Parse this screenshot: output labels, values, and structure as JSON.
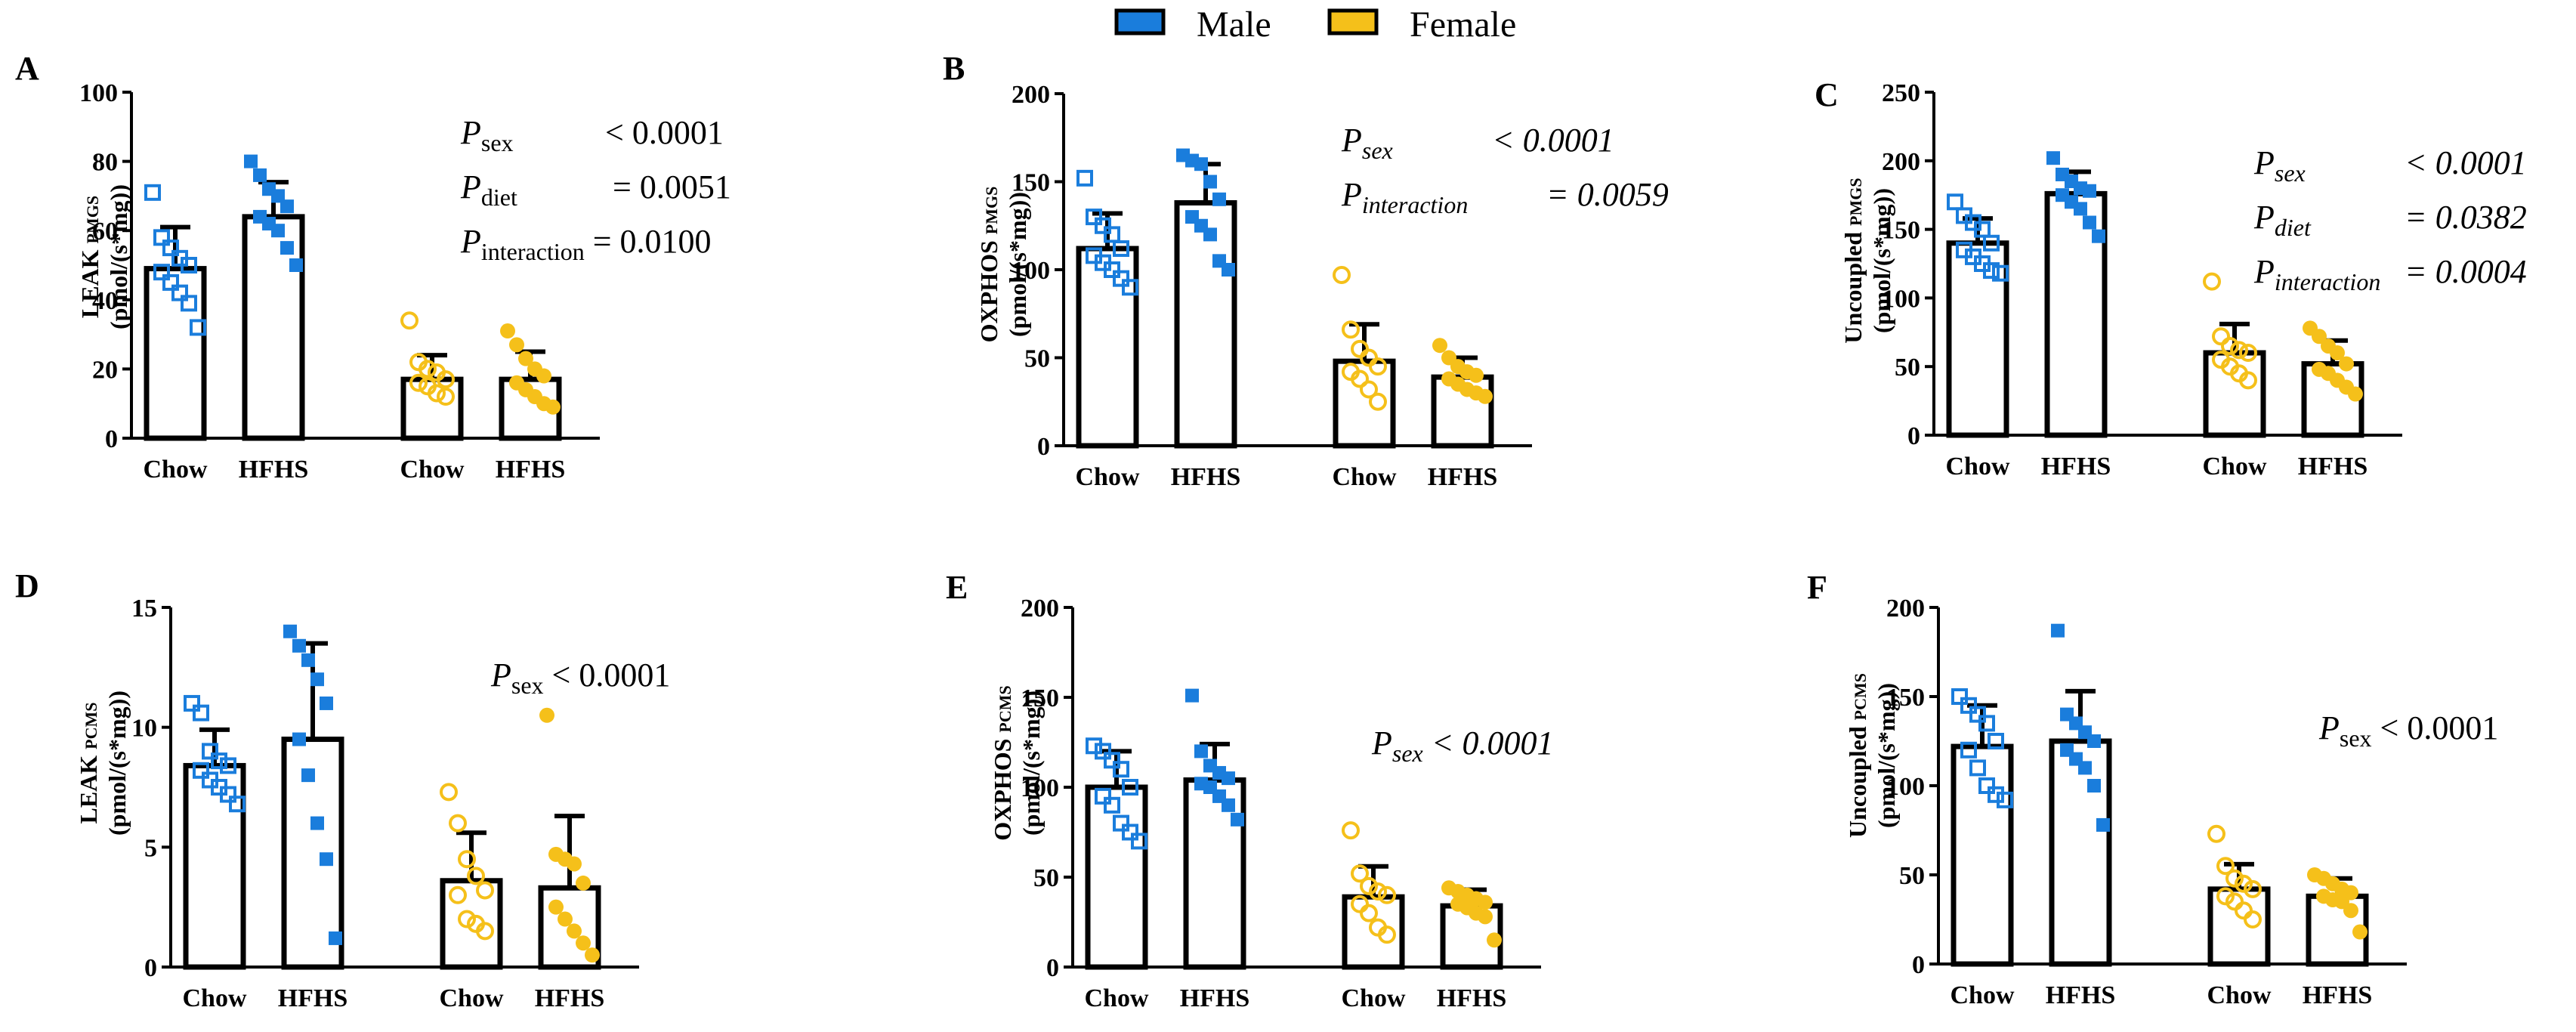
{
  "legend": {
    "male_label": "Male",
    "female_label": "Female",
    "male_color": "#1a7ddc",
    "female_color": "#f5c01a"
  },
  "chart_data": [
    {
      "type": "bar",
      "panel": "A",
      "ylabel_main": "LEAK",
      "ylabel_sub": "PMGS",
      "ylabel_unit": "(pmol/(s*mg))",
      "yticks": [
        0,
        20,
        40,
        60,
        80,
        100
      ],
      "ylim": [
        0,
        100
      ],
      "categories": [
        "Chow",
        "HFHS",
        "Chow",
        "HFHS"
      ],
      "series": [
        {
          "name": "Male Chow",
          "mean": 49,
          "sd": 12,
          "points": [
            71,
            58,
            55,
            52,
            50,
            48,
            45,
            42,
            39,
            32
          ]
        },
        {
          "name": "Male HFHS",
          "mean": 64,
          "sd": 10,
          "points": [
            80,
            76,
            72,
            70,
            67,
            64,
            62,
            60,
            55,
            50
          ]
        },
        {
          "name": "Female Chow",
          "mean": 17,
          "sd": 7,
          "points": [
            34,
            22,
            20,
            19,
            17,
            16,
            15,
            13,
            12
          ]
        },
        {
          "name": "Female HFHS",
          "mean": 17,
          "sd": 8,
          "points": [
            31,
            27,
            23,
            20,
            18,
            16,
            14,
            12,
            10,
            9
          ]
        }
      ],
      "annotations": [
        {
          "p": "P",
          "sub": "sex",
          "text": "< 0.0001",
          "italic": false
        },
        {
          "p": "P",
          "sub": "diet",
          "text": "= 0.0051",
          "italic": false
        },
        {
          "p": "P",
          "sub": "interaction",
          "text": "= 0.0100",
          "italic": false
        }
      ]
    },
    {
      "type": "bar",
      "panel": "B",
      "ylabel_main": "OXPHOS",
      "ylabel_sub": "PMGS",
      "ylabel_unit": "(pmol/(s*mg))",
      "yticks": [
        0,
        50,
        100,
        150,
        200
      ],
      "ylim": [
        0,
        200
      ],
      "categories": [
        "Chow",
        "HFHS",
        "Chow",
        "HFHS"
      ],
      "series": [
        {
          "name": "Male Chow",
          "mean": 112,
          "sd": 20,
          "points": [
            152,
            130,
            125,
            120,
            112,
            108,
            104,
            100,
            95,
            90
          ]
        },
        {
          "name": "Male HFHS",
          "mean": 138,
          "sd": 22,
          "points": [
            165,
            162,
            160,
            150,
            140,
            130,
            125,
            120,
            105,
            100
          ]
        },
        {
          "name": "Female Chow",
          "mean": 48,
          "sd": 21,
          "points": [
            97,
            66,
            55,
            50,
            45,
            42,
            38,
            32,
            25
          ]
        },
        {
          "name": "Female HFHS",
          "mean": 39,
          "sd": 11,
          "points": [
            57,
            50,
            45,
            42,
            40,
            38,
            35,
            32,
            30,
            28
          ]
        }
      ],
      "annotations": [
        {
          "p": "P",
          "sub": "sex",
          "text": "< 0.0001",
          "italic": true
        },
        {
          "p": "P",
          "sub": "interaction",
          "text": "= 0.0059",
          "italic": true
        }
      ]
    },
    {
      "type": "bar",
      "panel": "C",
      "ylabel_main": "Uncoupled",
      "ylabel_sub": "PMGS",
      "ylabel_unit": "(pmol/(s*mg))",
      "yticks": [
        0,
        50,
        100,
        150,
        200,
        250
      ],
      "ylim": [
        0,
        250
      ],
      "categories": [
        "Chow",
        "HFHS",
        "Chow",
        "HFHS"
      ],
      "series": [
        {
          "name": "Male Chow",
          "mean": 140,
          "sd": 18,
          "points": [
            170,
            160,
            155,
            150,
            140,
            135,
            130,
            125,
            120,
            118
          ]
        },
        {
          "name": "Male HFHS",
          "mean": 176,
          "sd": 16,
          "points": [
            202,
            190,
            185,
            180,
            178,
            175,
            170,
            165,
            155,
            145
          ]
        },
        {
          "name": "Female Chow",
          "mean": 60,
          "sd": 21,
          "points": [
            112,
            72,
            65,
            62,
            60,
            55,
            50,
            45,
            40
          ]
        },
        {
          "name": "Female HFHS",
          "mean": 52,
          "sd": 17,
          "points": [
            78,
            72,
            65,
            60,
            52,
            48,
            45,
            40,
            35,
            30
          ]
        }
      ],
      "annotations": [
        {
          "p": "P",
          "sub": "sex",
          "text": "< 0.0001",
          "italic": true
        },
        {
          "p": "P",
          "sub": "diet",
          "text": "= 0.0382",
          "italic": true
        },
        {
          "p": "P",
          "sub": "interaction",
          "text": "= 0.0004",
          "italic": true
        }
      ]
    },
    {
      "type": "bar",
      "panel": "D",
      "ylabel_main": "LEAK",
      "ylabel_sub": "PCMS",
      "ylabel_unit": "(pmol/(s*mg))",
      "yticks": [
        0,
        5,
        10,
        15
      ],
      "ylim": [
        0,
        15
      ],
      "categories": [
        "Chow",
        "HFHS",
        "Chow",
        "HFHS"
      ],
      "series": [
        {
          "name": "Male Chow",
          "mean": 8.4,
          "sd": 1.5,
          "points": [
            11,
            10.6,
            9,
            8.6,
            8.4,
            8.2,
            7.8,
            7.5,
            7.2,
            6.8
          ]
        },
        {
          "name": "Male HFHS",
          "mean": 9.5,
          "sd": 4.0,
          "points": [
            14,
            13.4,
            12.8,
            12,
            11,
            9.5,
            8,
            6,
            4.5,
            1.2
          ]
        },
        {
          "name": "Female Chow",
          "mean": 3.6,
          "sd": 2.0,
          "points": [
            7.3,
            6,
            4.5,
            3.8,
            3.2,
            3,
            2,
            1.8,
            1.5
          ]
        },
        {
          "name": "Female HFHS",
          "mean": 3.3,
          "sd": 3.0,
          "points": [
            10.5,
            4.7,
            4.5,
            4.3,
            3.5,
            2.5,
            2,
            1.5,
            1,
            0.5
          ]
        }
      ],
      "annotations": [
        {
          "p": "P",
          "sub": "sex",
          "text": "< 0.0001",
          "italic": false
        }
      ]
    },
    {
      "type": "bar",
      "panel": "E",
      "ylabel_main": "OXPHOS",
      "ylabel_sub": "PCMS",
      "ylabel_unit": "(pmol/(s*mg))",
      "yticks": [
        0,
        50,
        100,
        150,
        200
      ],
      "ylim": [
        0,
        200
      ],
      "categories": [
        "Chow",
        "HFHS",
        "Chow",
        "HFHS"
      ],
      "series": [
        {
          "name": "Male Chow",
          "mean": 100,
          "sd": 20,
          "points": [
            123,
            120,
            115,
            110,
            100,
            95,
            90,
            80,
            75,
            70
          ]
        },
        {
          "name": "Male HFHS",
          "mean": 104,
          "sd": 20,
          "points": [
            151,
            120,
            112,
            108,
            105,
            102,
            100,
            95,
            90,
            82
          ]
        },
        {
          "name": "Female Chow",
          "mean": 39,
          "sd": 17,
          "points": [
            76,
            52,
            45,
            42,
            40,
            35,
            30,
            22,
            18
          ]
        },
        {
          "name": "Female HFHS",
          "mean": 34,
          "sd": 9,
          "points": [
            44,
            42,
            40,
            38,
            36,
            35,
            33,
            30,
            28,
            15
          ]
        }
      ],
      "annotations": [
        {
          "p": "P",
          "sub": "sex",
          "text": "< 0.0001",
          "italic": true
        }
      ]
    },
    {
      "type": "bar",
      "panel": "F",
      "ylabel_main": "Uncoupled",
      "ylabel_sub": "PCMS",
      "ylabel_unit": "(pmol/(s*mg))",
      "yticks": [
        0,
        50,
        100,
        150,
        200
      ],
      "ylim": [
        0,
        200
      ],
      "categories": [
        "Chow",
        "HFHS",
        "Chow",
        "HFHS"
      ],
      "series": [
        {
          "name": "Male Chow",
          "mean": 122,
          "sd": 23,
          "points": [
            150,
            145,
            140,
            135,
            125,
            120,
            110,
            100,
            95,
            92
          ]
        },
        {
          "name": "Male HFHS",
          "mean": 125,
          "sd": 28,
          "points": [
            187,
            140,
            135,
            130,
            125,
            120,
            115,
            110,
            100,
            78
          ]
        },
        {
          "name": "Female Chow",
          "mean": 42,
          "sd": 14,
          "points": [
            73,
            55,
            48,
            45,
            42,
            38,
            35,
            30,
            25
          ]
        },
        {
          "name": "Female HFHS",
          "mean": 38,
          "sd": 10,
          "points": [
            50,
            48,
            45,
            42,
            40,
            38,
            36,
            35,
            30,
            18
          ]
        }
      ],
      "annotations": [
        {
          "p": "P",
          "sub": "sex",
          "text": "< 0.0001",
          "italic": false
        }
      ]
    }
  ]
}
